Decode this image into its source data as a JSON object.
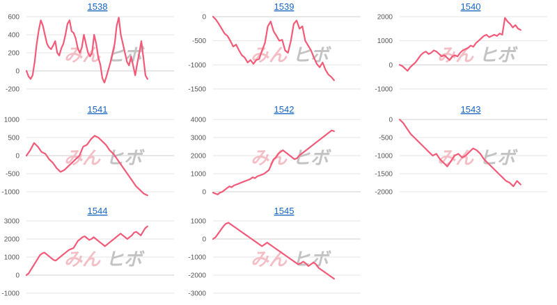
{
  "watermark": {
    "text_a": "みん",
    "text_b": "ヒボ",
    "color_a": "#f2b8bf",
    "color_b": "#bdbdbd"
  },
  "line_color": "#f25a78",
  "chart_data": [
    {
      "type": "line",
      "title": "1538",
      "ylim": [
        -200,
        600
      ],
      "yticks": [
        "600",
        "400",
        "200",
        "0",
        "-200"
      ],
      "grid": true,
      "values": [
        0,
        -60,
        -90,
        -50,
        100,
        300,
        450,
        560,
        500,
        400,
        300,
        260,
        240,
        280,
        330,
        200,
        170,
        250,
        300,
        400,
        520,
        560,
        440,
        420,
        360,
        250,
        200,
        260,
        400,
        300,
        200,
        160,
        200,
        400,
        300,
        150,
        70,
        -80,
        -130,
        -60,
        20,
        100,
        200,
        300,
        500,
        590,
        400,
        300,
        200,
        100,
        60,
        160,
        60,
        -50,
        80,
        200,
        330,
        150,
        -50,
        -90
      ]
    },
    {
      "type": "line",
      "title": "1539",
      "ylim": [
        -1500,
        0
      ],
      "yticks": [
        "0",
        "-500",
        "-1000",
        "-1500"
      ],
      "grid": true,
      "values": [
        0,
        -60,
        -150,
        -250,
        -350,
        -400,
        -500,
        -620,
        -580,
        -700,
        -800,
        -850,
        -950,
        -900,
        -980,
        -900,
        -880,
        -700,
        -550,
        -200,
        -100,
        -300,
        -400,
        -500,
        -480,
        -700,
        -750,
        -500,
        -150,
        -80,
        -250,
        -200,
        -500,
        -600,
        -700,
        -850,
        -980,
        -1050,
        -950,
        -1100,
        -1200,
        -1250,
        -1320
      ]
    },
    {
      "type": "line",
      "title": "1540",
      "ylim": [
        -1000,
        2000
      ],
      "yticks": [
        "2000",
        "1000",
        "0",
        "-1000"
      ],
      "grid": true,
      "values": [
        0,
        -50,
        -150,
        -250,
        -100,
        0,
        100,
        250,
        400,
        500,
        550,
        450,
        500,
        600,
        550,
        450,
        350,
        400,
        300,
        200,
        350,
        400,
        350,
        500,
        600,
        650,
        700,
        800,
        750,
        900,
        1000,
        1100,
        1200,
        1250,
        1150,
        1200,
        1250,
        1200,
        1300,
        1250,
        1950,
        1800,
        1700,
        1550,
        1650,
        1500,
        1450
      ]
    },
    {
      "type": "line",
      "title": "1541",
      "ylim": [
        -1000,
        1000
      ],
      "yticks": [
        "1000",
        "500",
        "0",
        "-500",
        "-1000"
      ],
      "grid": true,
      "values": [
        0,
        150,
        350,
        250,
        100,
        50,
        -100,
        -200,
        -350,
        -450,
        -400,
        -300,
        -200,
        -100,
        0,
        250,
        300,
        450,
        550,
        500,
        400,
        300,
        150,
        50,
        -100,
        -250,
        -400,
        -550,
        -700,
        -850,
        -950,
        -1050,
        -1100
      ]
    },
    {
      "type": "line",
      "title": "1542",
      "ylim": [
        0,
        4000
      ],
      "yticks": [
        "4000",
        "3000",
        "2000",
        "1000",
        "0"
      ],
      "grid": true,
      "values": [
        -50,
        -100,
        -150,
        -50,
        0,
        100,
        200,
        300,
        250,
        350,
        400,
        450,
        500,
        550,
        600,
        650,
        700,
        800,
        750,
        850,
        900,
        950,
        1000,
        1100,
        1200,
        1500,
        1800,
        1900,
        2100,
        2200,
        2300,
        2200,
        2100,
        2000,
        1900,
        1800,
        1850,
        2000,
        2100,
        2200,
        2300,
        2400,
        2500,
        2600,
        2700,
        2800,
        2900,
        3000,
        3100,
        3200,
        3300,
        3400,
        3350
      ]
    },
    {
      "type": "line",
      "title": "1543",
      "ylim": [
        -2000,
        0
      ],
      "yticks": [
        "0",
        "-500",
        "-1000",
        "-1500",
        "-2000"
      ],
      "grid": true,
      "values": [
        0,
        -100,
        -250,
        -400,
        -500,
        -600,
        -700,
        -800,
        -900,
        -1000,
        -950,
        -1100,
        -1200,
        -1300,
        -1150,
        -1000,
        -950,
        -1050,
        -1000,
        -900,
        -800,
        -850,
        -950,
        -1100,
        -1200,
        -1300,
        -1400,
        -1500,
        -1600,
        -1700,
        -1750,
        -1850,
        -1700,
        -1800
      ]
    },
    {
      "type": "line",
      "title": "1544",
      "ylim": [
        -1000,
        3000
      ],
      "yticks": [
        "3000",
        "2000",
        "1000",
        "0",
        "-1000"
      ],
      "grid": true,
      "values": [
        0,
        100,
        300,
        500,
        700,
        900,
        1100,
        1200,
        1250,
        1150,
        1050,
        950,
        850,
        800,
        900,
        1000,
        1100,
        1200,
        1300,
        1400,
        1450,
        1500,
        1700,
        1900,
        2000,
        2100,
        2150,
        2050,
        1950,
        2000,
        2100,
        2000,
        1900,
        1800,
        1700,
        1600,
        1700,
        1800,
        1900,
        2000,
        2100,
        2200,
        2300,
        2200,
        2100,
        2000,
        2100,
        2200,
        2350,
        2400,
        2300,
        2200,
        2400,
        2600,
        2700
      ]
    },
    {
      "type": "line",
      "title": "1545",
      "ylim": [
        -3000,
        1000
      ],
      "yticks": [
        "1000",
        "0",
        "-1000",
        "-2000",
        "-3000"
      ],
      "grid": true,
      "values": [
        0,
        100,
        300,
        500,
        700,
        850,
        900,
        800,
        700,
        600,
        500,
        400,
        300,
        200,
        100,
        0,
        -100,
        -200,
        -300,
        -400,
        -300,
        -200,
        -300,
        -400,
        -500,
        -600,
        -700,
        -800,
        -900,
        -1000,
        -1100,
        -1200,
        -1300,
        -1400,
        -1350,
        -1250,
        -1350,
        -1500,
        -1400,
        -1300,
        -1400,
        -1600,
        -1700,
        -1800,
        -1900,
        -2000,
        -2100,
        -2200
      ]
    }
  ]
}
